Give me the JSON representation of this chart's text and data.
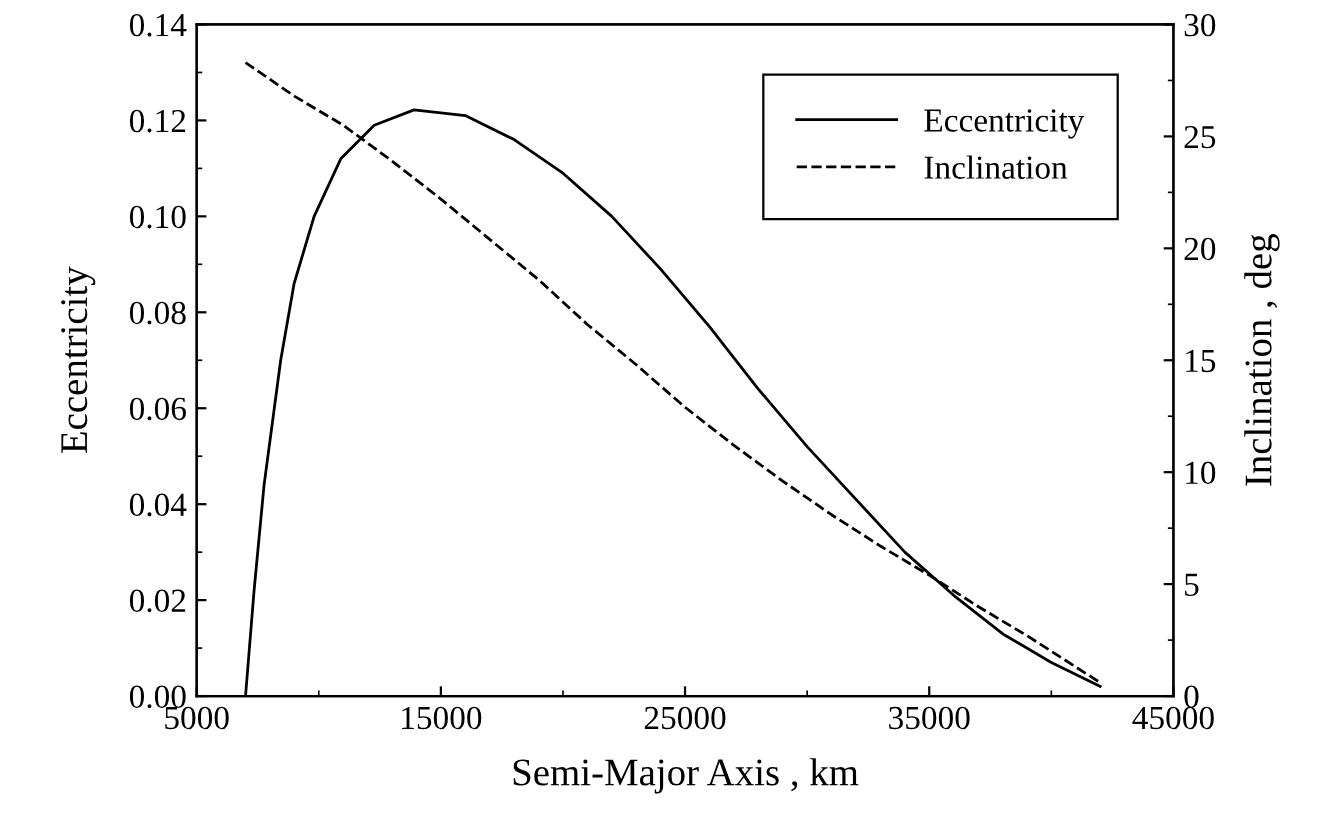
{
  "chart_data": {
    "type": "line",
    "xlabel": "Semi-Major Axis , km",
    "ylabel": "Eccentricity",
    "y2label": "Inclination , deg",
    "xlim": [
      5000,
      45000
    ],
    "xticks": [
      5000,
      15000,
      25000,
      35000,
      45000
    ],
    "ylim": [
      0,
      0.14
    ],
    "yticks": [
      {
        "value": 0,
        "label": "0.00"
      },
      {
        "value": 0.02,
        "label": "0.02"
      },
      {
        "value": 0.04,
        "label": "0.04"
      },
      {
        "value": 0.06,
        "label": "0.06"
      },
      {
        "value": 0.08,
        "label": "0.08"
      },
      {
        "value": 0.1,
        "label": "0.10"
      },
      {
        "value": 0.12,
        "label": "0.12"
      },
      {
        "value": 0.14,
        "label": "0.14"
      }
    ],
    "y2lim": [
      0,
      30
    ],
    "y2ticks": [
      0,
      5,
      10,
      15,
      20,
      25,
      30
    ],
    "legend": "top right",
    "series": [
      {
        "name": "Eccentricity",
        "color": "#000000",
        "line_style": "solid",
        "x": [
          7000,
          7350,
          7760,
          8440,
          8990,
          9810,
          10900,
          12270,
          13900,
          16000,
          18000,
          20000,
          22000,
          24000,
          26000,
          28000,
          30000,
          32000,
          34000,
          36000,
          38000,
          40000,
          42000
        ],
        "values": [
          0,
          0.022,
          0.044,
          0.07,
          0.086,
          0.1,
          0.112,
          0.119,
          0.1222,
          0.121,
          0.116,
          0.109,
          0.1,
          0.089,
          0.077,
          0.064,
          0.052,
          0.041,
          0.03,
          0.021,
          0.013,
          0.007,
          0.002
        ]
      },
      {
        "name": "Inclination",
        "color": "#000000",
        "line_style": "dashed",
        "axis": "y2",
        "x": [
          7000,
          9000,
          11000,
          13000,
          15000,
          17000,
          19000,
          21000,
          23000,
          25000,
          27000,
          29000,
          31000,
          33000,
          35000,
          37000,
          39000,
          41000,
          42000
        ],
        "values": [
          28.3,
          26.8,
          25.5,
          23.9,
          22.2,
          20.4,
          18.6,
          16.6,
          14.8,
          12.9,
          11.2,
          9.6,
          8.1,
          6.7,
          5.4,
          4.0,
          2.7,
          1.3,
          0.6
        ]
      }
    ]
  }
}
